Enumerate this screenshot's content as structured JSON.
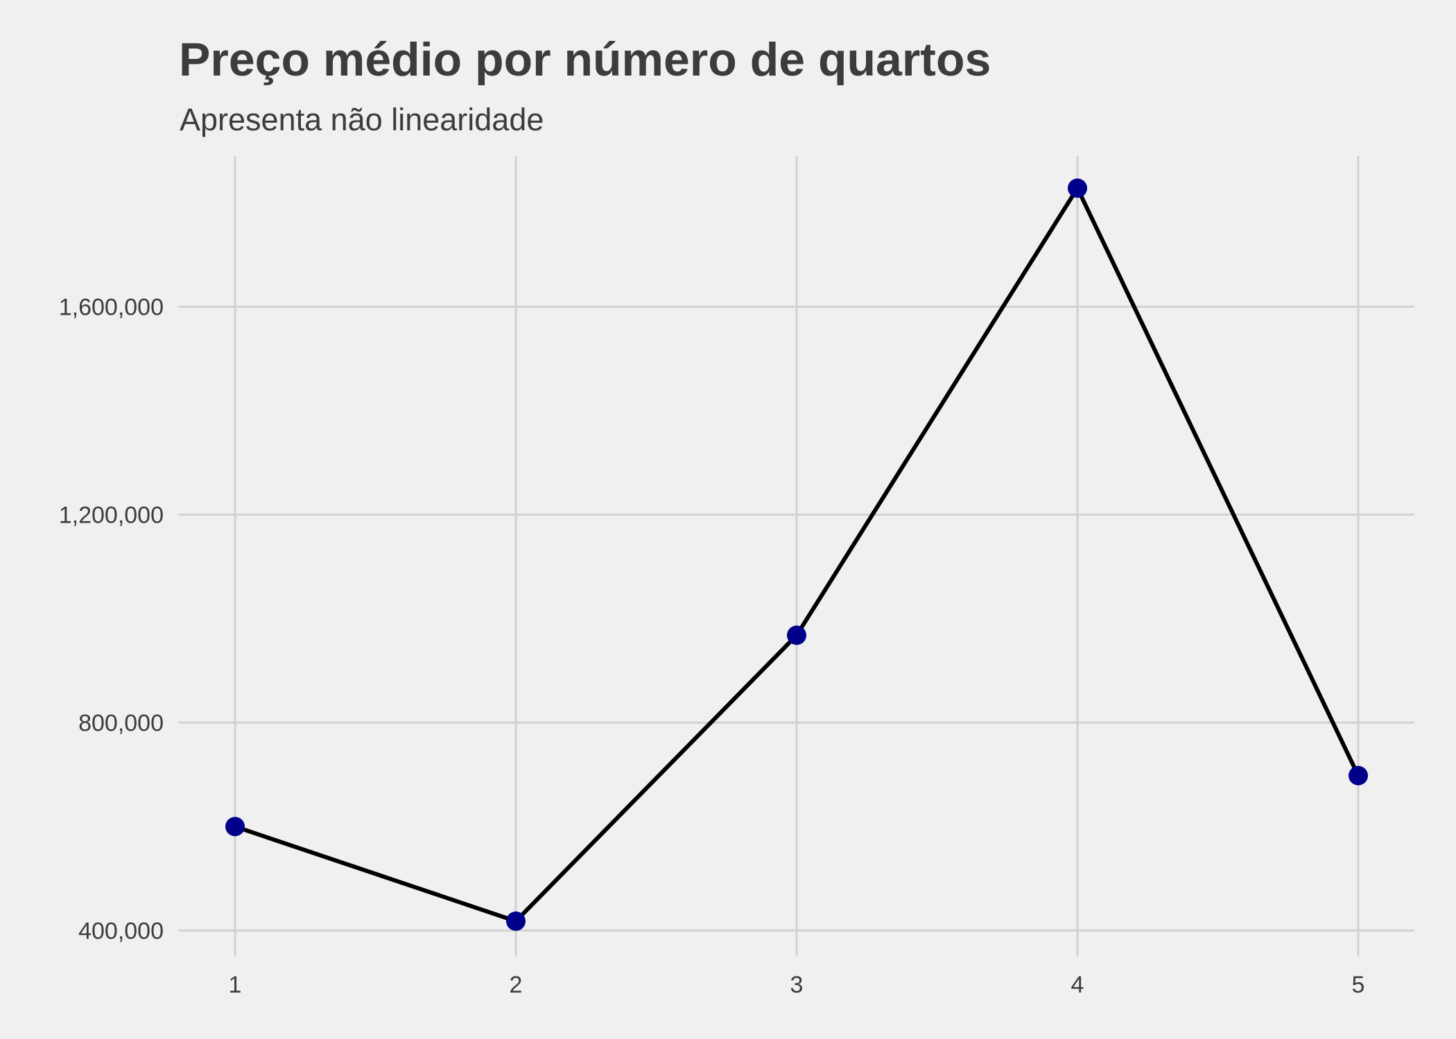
{
  "chart_data": {
    "type": "line",
    "title": "Preço médio por número de quartos",
    "subtitle": "Apresenta não linearidade",
    "xlabel": "",
    "ylabel": "",
    "x": [
      1,
      2,
      3,
      4,
      5
    ],
    "series": [
      {
        "values": [
          600000,
          418000,
          968000,
          1828000,
          698000
        ]
      }
    ],
    "x_ticks": [
      1,
      2,
      3,
      4,
      5
    ],
    "x_tick_labels": [
      "1",
      "2",
      "3",
      "4",
      "5"
    ],
    "y_ticks": [
      400000,
      800000,
      1200000,
      1600000
    ],
    "y_tick_labels": [
      "400,000",
      "800,000",
      "1,200,000",
      "1,600,000"
    ],
    "xlim": [
      0.8,
      5.2
    ],
    "ylim": [
      350000,
      1890000
    ],
    "grid": true,
    "legend": "none",
    "colors": {
      "background": "#f0f0f0",
      "grid": "#d2d2d2",
      "line": "#000000",
      "points": "#00008b",
      "text": "#3c3c3c"
    }
  }
}
